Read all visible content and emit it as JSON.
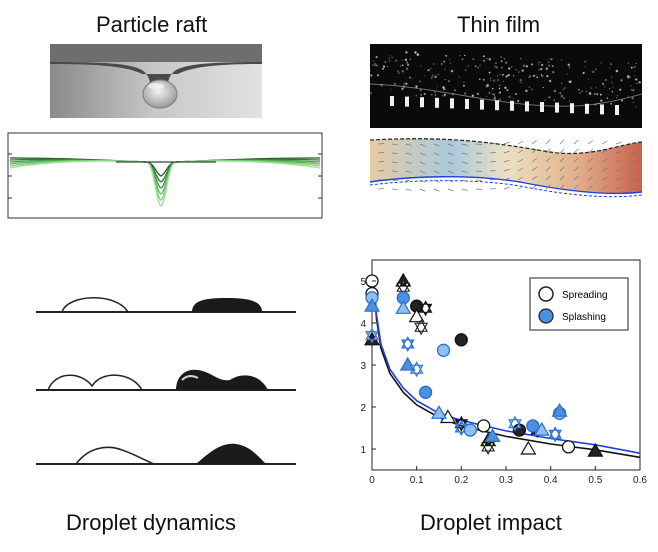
{
  "titles": {
    "particle_raft": "Particle raft",
    "thin_film": "Thin film",
    "droplet_dynamics": "Droplet dynamics",
    "droplet_impact": "Droplet impact"
  },
  "colors": {
    "raft_green": "#5cb85c",
    "raft_dark": "#1e5a22",
    "fit_blue": "#1f3fe0",
    "splash_blue": "#4a8fe0",
    "film_tan": "#e8d6b8",
    "film_red": "#c86a56",
    "film_blue": "#8fb8d4"
  },
  "impact_plot": {
    "legend": [
      "Spreading",
      "Splashing"
    ],
    "x_ticks": [
      "0",
      "0.1",
      "0.2",
      "0.3",
      "0.4",
      "0.5",
      "0.6"
    ],
    "y_ticks": [
      "1",
      "2",
      "3",
      "4",
      "5"
    ]
  },
  "chart_data": {
    "type": "scatter",
    "xlim": [
      0,
      0.6
    ],
    "ylim": [
      0.5,
      5.5
    ],
    "series": [
      {
        "name": "Spreading",
        "points": [
          [
            0.0,
            5.0
          ],
          [
            0.07,
            5.0
          ],
          [
            0.07,
            4.85
          ],
          [
            0.1,
            4.4
          ],
          [
            0.1,
            4.15
          ],
          [
            0.12,
            4.35
          ],
          [
            0.0,
            4.7
          ],
          [
            0.0,
            3.6
          ],
          [
            0.11,
            3.9
          ],
          [
            0.2,
            3.6
          ],
          [
            0.17,
            1.75
          ],
          [
            0.2,
            1.6
          ],
          [
            0.25,
            1.55
          ],
          [
            0.26,
            1.2
          ],
          [
            0.26,
            1.05
          ],
          [
            0.33,
            1.45
          ],
          [
            0.35,
            1.0
          ],
          [
            0.37,
            1.45
          ],
          [
            0.44,
            1.05
          ],
          [
            0.5,
            0.95
          ]
        ]
      },
      {
        "name": "Splashing",
        "points": [
          [
            0.0,
            4.6
          ],
          [
            0.0,
            4.4
          ],
          [
            0.0,
            3.7
          ],
          [
            0.07,
            4.6
          ],
          [
            0.07,
            4.35
          ],
          [
            0.08,
            3.5
          ],
          [
            0.16,
            3.35
          ],
          [
            0.08,
            3.0
          ],
          [
            0.1,
            2.9
          ],
          [
            0.12,
            2.35
          ],
          [
            0.15,
            1.85
          ],
          [
            0.2,
            1.5
          ],
          [
            0.22,
            1.45
          ],
          [
            0.27,
            1.3
          ],
          [
            0.32,
            1.6
          ],
          [
            0.36,
            1.55
          ],
          [
            0.38,
            1.45
          ],
          [
            0.41,
            1.35
          ],
          [
            0.42,
            1.85
          ],
          [
            0.42,
            1.9
          ]
        ]
      }
    ],
    "curves": [
      {
        "name": "black-fit",
        "points": [
          [
            0.005,
            4.8
          ],
          [
            0.01,
            4.1
          ],
          [
            0.02,
            3.4
          ],
          [
            0.04,
            2.8
          ],
          [
            0.07,
            2.35
          ],
          [
            0.1,
            2.05
          ],
          [
            0.15,
            1.75
          ],
          [
            0.2,
            1.55
          ],
          [
            0.3,
            1.3
          ],
          [
            0.4,
            1.12
          ],
          [
            0.5,
            0.98
          ],
          [
            0.6,
            0.8
          ]
        ]
      },
      {
        "name": "blue-fit",
        "points": [
          [
            0.005,
            4.9
          ],
          [
            0.01,
            4.2
          ],
          [
            0.02,
            3.5
          ],
          [
            0.04,
            2.9
          ],
          [
            0.07,
            2.45
          ],
          [
            0.1,
            2.15
          ],
          [
            0.15,
            1.85
          ],
          [
            0.2,
            1.68
          ],
          [
            0.3,
            1.43
          ],
          [
            0.4,
            1.25
          ],
          [
            0.5,
            1.1
          ],
          [
            0.6,
            0.9
          ]
        ]
      }
    ]
  }
}
